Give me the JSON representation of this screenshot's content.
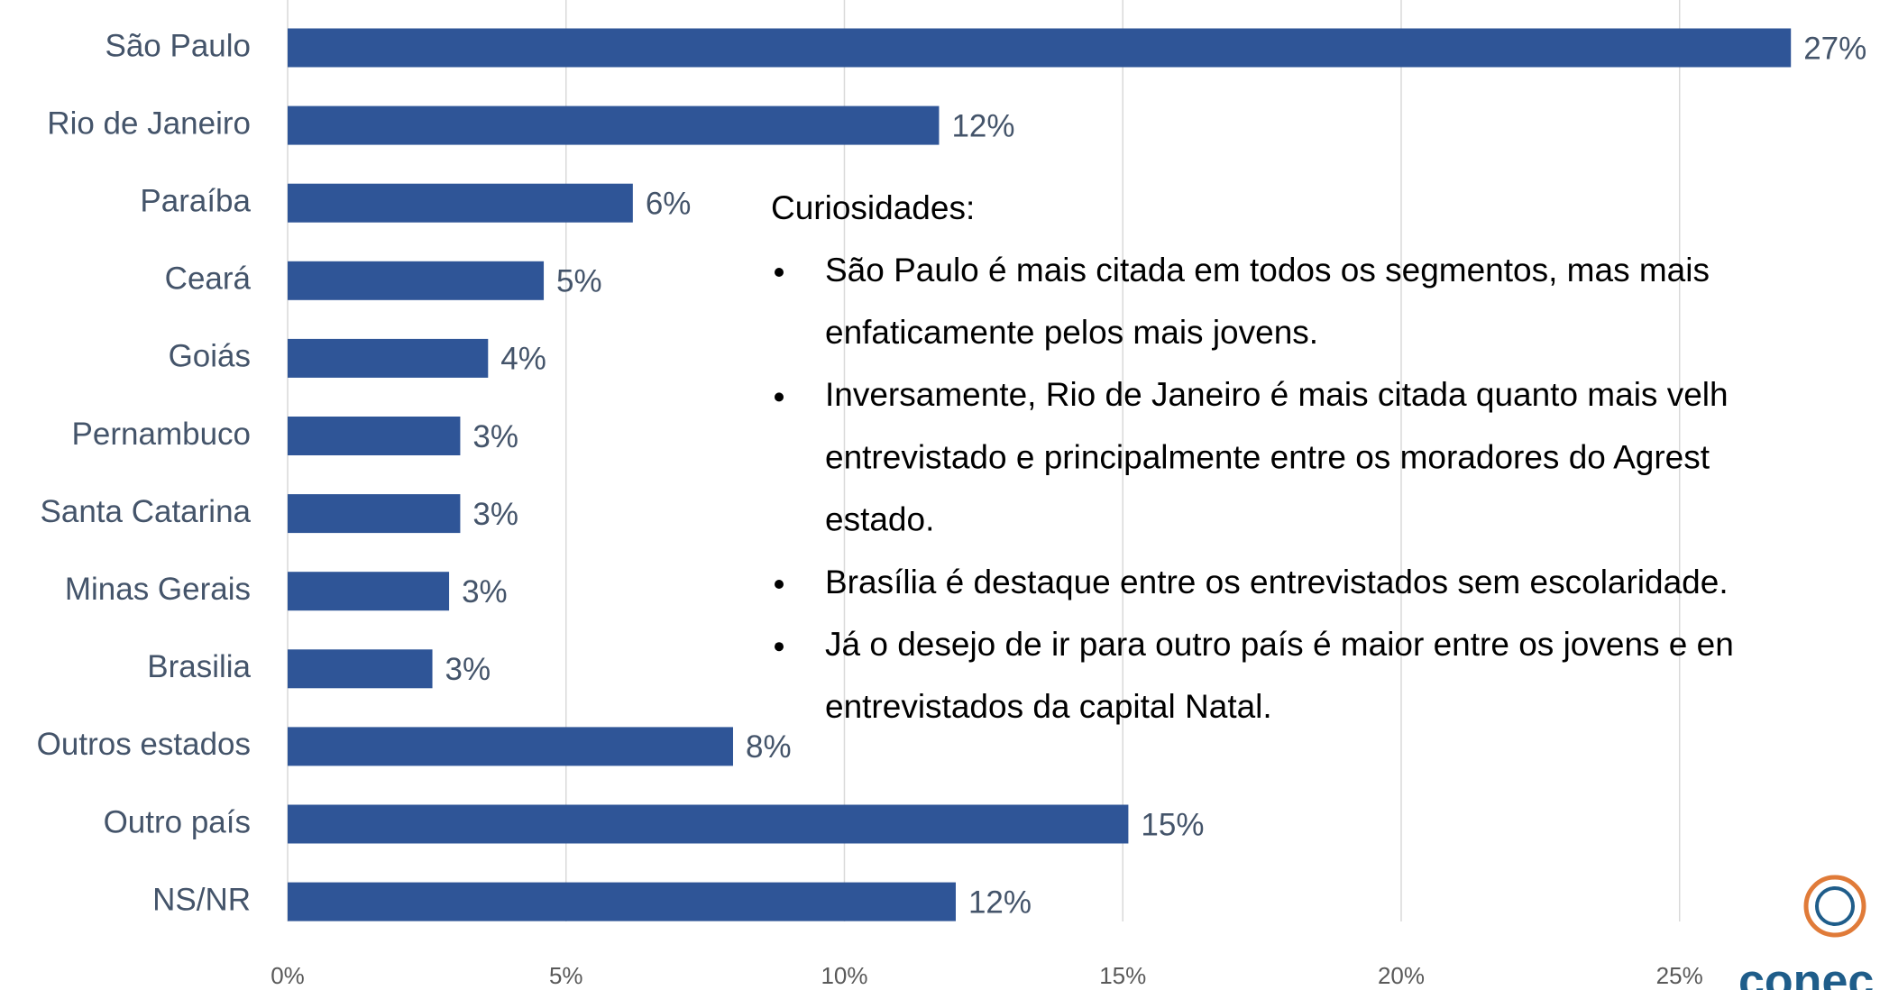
{
  "chart_data": {
    "type": "bar",
    "orientation": "horizontal",
    "categories": [
      "São Paulo",
      "Rio de Janeiro",
      "Paraíba",
      "Ceará",
      "Goiás",
      "Pernambuco",
      "Santa Catarina",
      "Minas Gerais",
      "Brasilia",
      "Outros estados",
      "Outro país",
      "NS/NR"
    ],
    "values": [
      27.0,
      11.7,
      6.2,
      4.6,
      3.6,
      3.1,
      3.1,
      2.9,
      2.6,
      8.0,
      15.1,
      12.0
    ],
    "value_labels": [
      "27%",
      "12%",
      "6%",
      "5%",
      "4%",
      "3%",
      "3%",
      "3%",
      "3%",
      "8%",
      "15%",
      "12%"
    ],
    "color": "#2f5597",
    "xlim": [
      0,
      28.6
    ],
    "xticks": [
      {
        "value": 0,
        "label": "0%"
      },
      {
        "value": 5,
        "label": "5%"
      },
      {
        "value": 10,
        "label": "10%"
      },
      {
        "value": 15,
        "label": "15%"
      },
      {
        "value": 20,
        "label": "20%"
      },
      {
        "value": 25,
        "label": "25%"
      }
    ],
    "grid": true,
    "annotation": {
      "heading": "Curiosidades:",
      "bullets": [
        [
          "São Paulo é mais citada em todos os segmentos, mas mais",
          "enfaticamente pelos mais jovens."
        ],
        [
          "Inversamente, Rio de Janeiro é mais citada quanto mais velh",
          "entrevistado e principalmente entre os moradores do Agrest",
          "estado."
        ],
        [
          "Brasília é destaque entre os entrevistados sem escolaridade."
        ],
        [
          "Já o desejo de ir para outro país é maior entre os jovens e en",
          "entrevistados da capital Natal."
        ]
      ]
    },
    "logo_text": "conec"
  }
}
